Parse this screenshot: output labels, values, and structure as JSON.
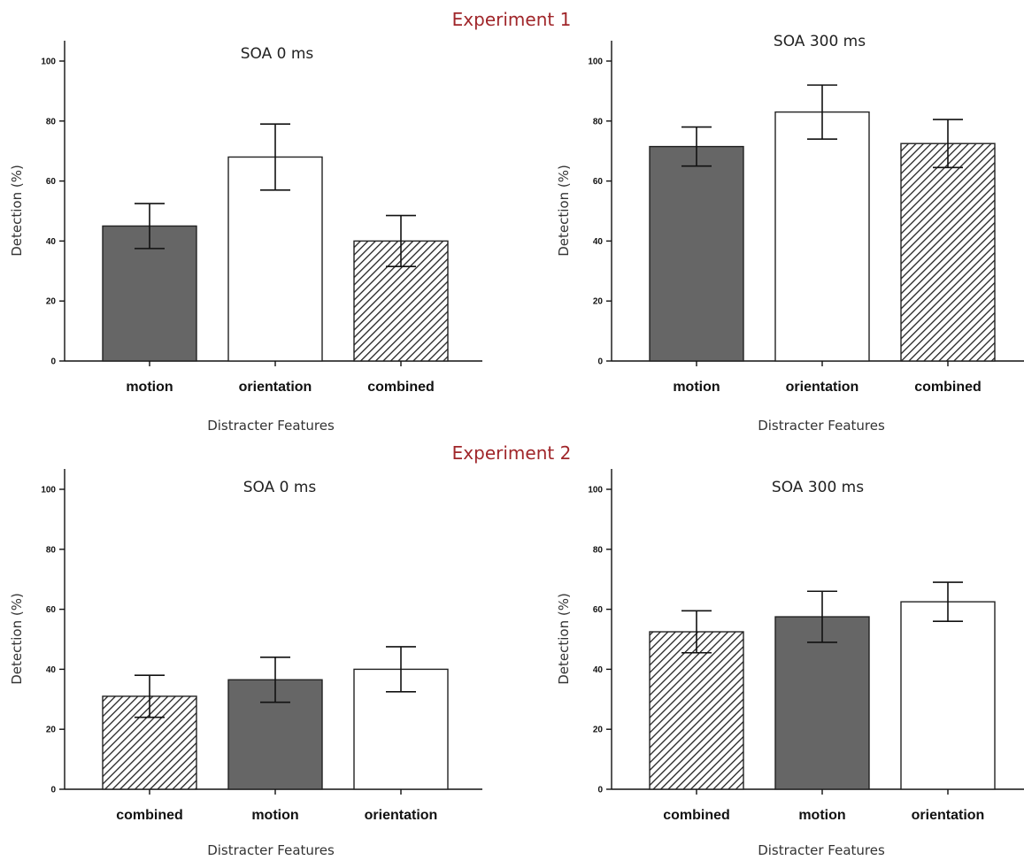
{
  "figure": {
    "experiments": [
      {
        "title": "Experiment 1"
      },
      {
        "title": "Experiment 2"
      }
    ]
  },
  "chart_data": [
    {
      "type": "bar",
      "experiment": "Experiment 1",
      "title": "SOA 0 ms",
      "xlabel": "Distracter Features",
      "ylabel": "Detection (%)",
      "ylim": [
        0,
        100
      ],
      "yticks": [
        0,
        20,
        40,
        60,
        80,
        100
      ],
      "categories": [
        "motion",
        "orientation",
        "combined"
      ],
      "values": [
        45,
        68,
        40
      ],
      "errors": [
        7.5,
        11,
        8.5
      ],
      "styles": [
        "dark",
        "white",
        "hatched"
      ],
      "colors": {
        "dark": "#666666",
        "white": "#ffffff",
        "hatch": "#222222"
      }
    },
    {
      "type": "bar",
      "experiment": "Experiment 1",
      "title": "SOA 300 ms",
      "xlabel": "Distracter Features",
      "ylabel": "Detection (%)",
      "ylim": [
        0,
        100
      ],
      "yticks": [
        0,
        20,
        40,
        60,
        80,
        100
      ],
      "categories": [
        "motion",
        "orientation",
        "combined"
      ],
      "values": [
        71.5,
        83,
        72.5
      ],
      "errors": [
        6.5,
        9,
        8
      ],
      "styles": [
        "dark",
        "white",
        "hatched"
      ],
      "colors": {
        "dark": "#666666",
        "white": "#ffffff",
        "hatch": "#222222"
      }
    },
    {
      "type": "bar",
      "experiment": "Experiment 2",
      "title": "SOA 0 ms",
      "xlabel": "Distracter Features",
      "ylabel": "Detection (%)",
      "ylim": [
        0,
        100
      ],
      "yticks": [
        0,
        20,
        40,
        60,
        80,
        100
      ],
      "categories": [
        "combined",
        "motion",
        "orientation"
      ],
      "values": [
        31,
        36.5,
        40
      ],
      "errors": [
        7,
        7.5,
        7.5
      ],
      "styles": [
        "hatched",
        "dark",
        "white"
      ],
      "colors": {
        "dark": "#666666",
        "white": "#ffffff",
        "hatch": "#222222"
      }
    },
    {
      "type": "bar",
      "experiment": "Experiment 2",
      "title": "SOA 300 ms",
      "xlabel": "Distracter Features",
      "ylabel": "Detection (%)",
      "ylim": [
        0,
        100
      ],
      "yticks": [
        0,
        20,
        40,
        60,
        80,
        100
      ],
      "categories": [
        "combined",
        "motion",
        "orientation"
      ],
      "values": [
        52.5,
        57.5,
        62.5
      ],
      "errors": [
        7,
        8.5,
        6.5
      ],
      "styles": [
        "hatched",
        "dark",
        "white"
      ],
      "colors": {
        "dark": "#666666",
        "white": "#ffffff",
        "hatch": "#222222"
      }
    }
  ]
}
